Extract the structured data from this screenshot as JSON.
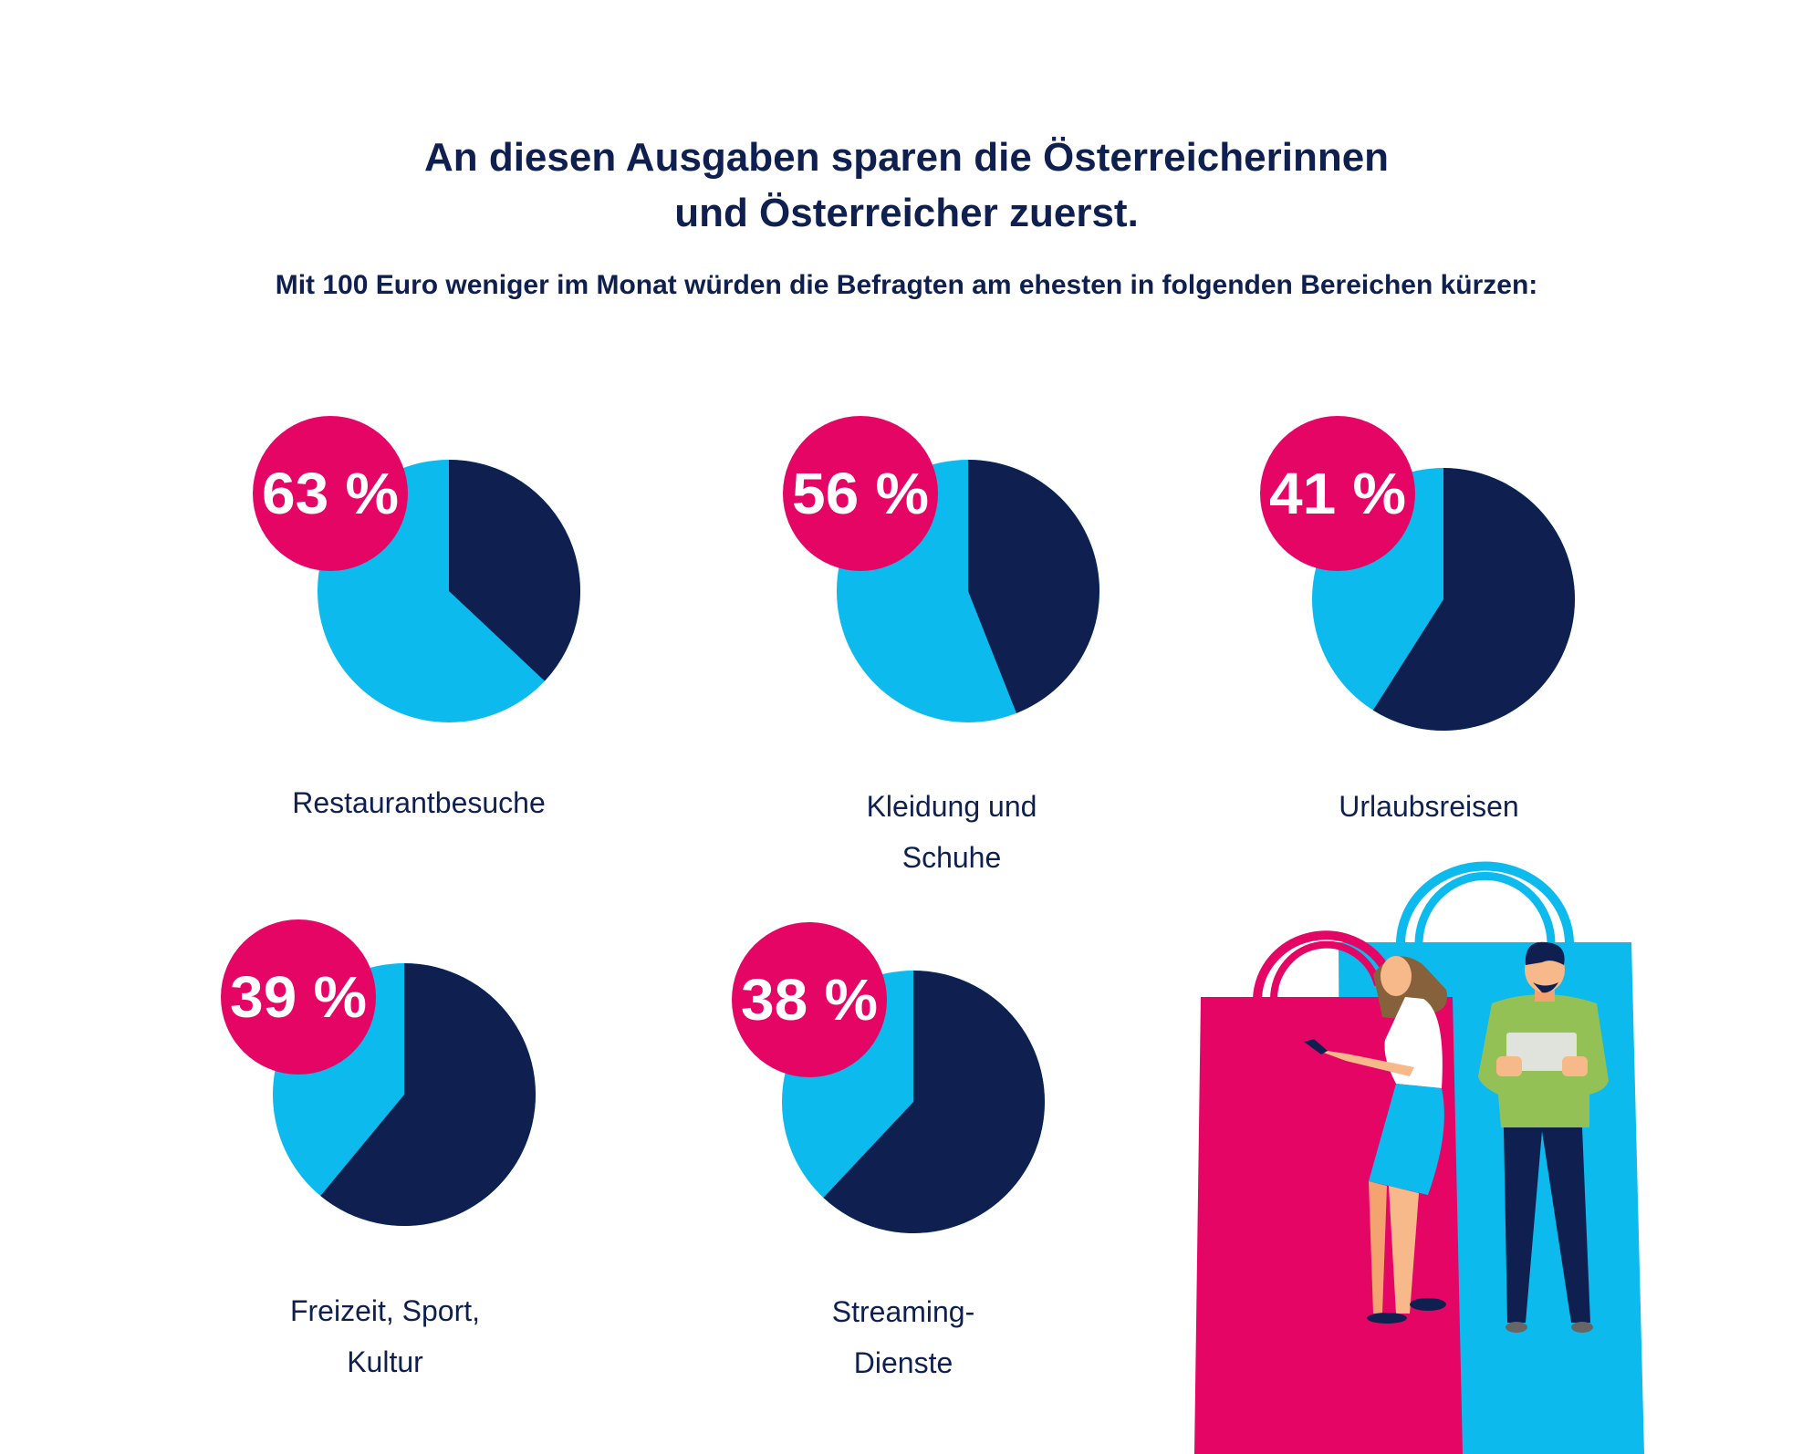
{
  "header": {
    "title_line1": "An diesen Ausgaben sparen die Österreicherinnen",
    "title_line2": "und Österreicher zuerst.",
    "subtitle": "Mit 100 Euro weniger im Monat würden die Befragten am ehesten in folgenden Bereichen kürzen:"
  },
  "colors": {
    "highlight": "#0cbaed",
    "remainder": "#0f2050",
    "badge": "#e50565",
    "text": "#0f2050"
  },
  "chart_data": {
    "type": "pie",
    "unit": "%",
    "items": [
      {
        "label_lines": [
          "Restaurantbesuche"
        ],
        "value": 63,
        "badge": "63 %"
      },
      {
        "label_lines": [
          "Kleidung und",
          "Schuhe"
        ],
        "value": 56,
        "badge": "56 %"
      },
      {
        "label_lines": [
          "Urlaubsreisen"
        ],
        "value": 41,
        "badge": "41 %"
      },
      {
        "label_lines": [
          "Freizeit, Sport,",
          "Kultur"
        ],
        "value": 39,
        "badge": "39 %"
      },
      {
        "label_lines": [
          "Streaming-",
          "Dienste"
        ],
        "value": 38,
        "badge": "38 %"
      }
    ]
  },
  "illustration": {
    "icon": "shopping-bags-people-illustration"
  }
}
